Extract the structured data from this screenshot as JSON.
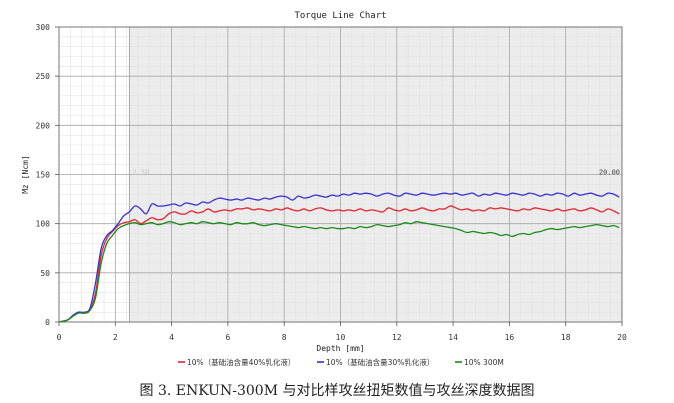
{
  "chart_data": {
    "type": "line",
    "title": "Torque Line Chart",
    "xlabel": "Depth [mm]",
    "ylabel": "Mz [Ncm]",
    "xlim": [
      0,
      20
    ],
    "ylim": [
      0,
      300
    ],
    "x_ticks": [
      "0",
      "2",
      "4",
      "6",
      "8",
      "10",
      "12",
      "14",
      "16",
      "18",
      "20"
    ],
    "y_ticks": [
      "0",
      "50",
      "100",
      "150",
      "200",
      "250",
      "300"
    ],
    "grid": true,
    "shaded_region": {
      "x_start": 2.5,
      "x_end": 20,
      "start_label": "2.50",
      "end_label": "20.00"
    },
    "legend_position": "bottom",
    "series": [
      {
        "name": "10%（基础油含量40%乳化液）",
        "color": "#e8232f",
        "x": [
          0,
          0.3,
          0.5,
          0.7,
          0.9,
          1.1,
          1.3,
          1.5,
          1.7,
          1.9,
          2.1,
          2.3,
          2.5,
          2.7,
          2.9,
          3.1,
          3.3,
          3.5,
          3.7,
          3.9,
          4.1,
          4.3,
          4.5,
          4.7,
          4.9,
          5.1,
          5.3,
          5.5,
          5.7,
          5.9,
          6.1,
          6.3,
          6.5,
          6.7,
          6.9,
          7.1,
          7.3,
          7.5,
          7.7,
          7.9,
          8.1,
          8.3,
          8.5,
          8.7,
          8.9,
          9.1,
          9.3,
          9.5,
          9.7,
          9.9,
          10.1,
          10.3,
          10.5,
          10.7,
          10.9,
          11.1,
          11.3,
          11.5,
          11.7,
          11.9,
          12.1,
          12.3,
          12.5,
          12.7,
          12.9,
          13.1,
          13.3,
          13.5,
          13.7,
          13.9,
          14.1,
          14.3,
          14.5,
          14.7,
          14.9,
          15.1,
          15.3,
          15.5,
          15.7,
          15.9,
          16.1,
          16.3,
          16.5,
          16.7,
          16.9,
          17.1,
          17.3,
          17.5,
          17.7,
          17.9,
          18.1,
          18.3,
          18.5,
          18.7,
          18.9,
          19.1,
          19.3,
          19.5,
          19.7,
          19.9
        ],
        "values": [
          0,
          2,
          6,
          10,
          9,
          12,
          30,
          68,
          85,
          92,
          98,
          101,
          102,
          104,
          100,
          103,
          106,
          104,
          105,
          110,
          112,
          110,
          110,
          113,
          111,
          112,
          115,
          112,
          113,
          114,
          113,
          115,
          115,
          116,
          114,
          115,
          114,
          113,
          115,
          114,
          116,
          114,
          113,
          115,
          113,
          115,
          116,
          114,
          113,
          114,
          113,
          114,
          113,
          115,
          113,
          114,
          113,
          112,
          116,
          114,
          113,
          115,
          113,
          114,
          116,
          114,
          113,
          115,
          115,
          118,
          116,
          114,
          115,
          113,
          114,
          113,
          116,
          115,
          116,
          115,
          114,
          113,
          115,
          114,
          116,
          115,
          114,
          113,
          115,
          113,
          114,
          115,
          113,
          114,
          116,
          114,
          112,
          115,
          113,
          110
        ]
      },
      {
        "name": "10%（基础油含量30%乳化液）",
        "color": "#3a2fd6",
        "x": [
          0,
          0.3,
          0.5,
          0.7,
          0.9,
          1.1,
          1.3,
          1.5,
          1.7,
          1.9,
          2.1,
          2.3,
          2.5,
          2.7,
          2.9,
          3.1,
          3.3,
          3.5,
          3.7,
          3.9,
          4.1,
          4.3,
          4.5,
          4.7,
          4.9,
          5.1,
          5.3,
          5.5,
          5.7,
          5.9,
          6.1,
          6.3,
          6.5,
          6.7,
          6.9,
          7.1,
          7.3,
          7.5,
          7.7,
          7.9,
          8.1,
          8.3,
          8.5,
          8.7,
          8.9,
          9.1,
          9.3,
          9.5,
          9.7,
          9.9,
          10.1,
          10.3,
          10.5,
          10.7,
          10.9,
          11.1,
          11.3,
          11.5,
          11.7,
          11.9,
          12.1,
          12.3,
          12.5,
          12.7,
          12.9,
          13.1,
          13.3,
          13.5,
          13.7,
          13.9,
          14.1,
          14.3,
          14.5,
          14.7,
          14.9,
          15.1,
          15.3,
          15.5,
          15.7,
          15.9,
          16.1,
          16.3,
          16.5,
          16.7,
          16.9,
          17.1,
          17.3,
          17.5,
          17.7,
          17.9,
          18.1,
          18.3,
          18.5,
          18.7,
          18.9,
          19.1,
          19.3,
          19.5,
          19.7,
          19.9
        ],
        "values": [
          0,
          2,
          7,
          10,
          10,
          14,
          40,
          75,
          88,
          93,
          100,
          108,
          112,
          118,
          115,
          110,
          120,
          118,
          118,
          119,
          120,
          118,
          121,
          120,
          119,
          122,
          121,
          124,
          126,
          125,
          124,
          125,
          124,
          126,
          125,
          124,
          126,
          125,
          127,
          128,
          127,
          124,
          128,
          126,
          127,
          129,
          128,
          127,
          129,
          128,
          130,
          129,
          131,
          130,
          131,
          130,
          128,
          130,
          131,
          129,
          128,
          131,
          130,
          129,
          131,
          130,
          129,
          130,
          131,
          130,
          131,
          129,
          130,
          131,
          128,
          130,
          129,
          131,
          130,
          129,
          131,
          130,
          129,
          131,
          130,
          128,
          130,
          129,
          131,
          130,
          128,
          131,
          129,
          130,
          131,
          129,
          128,
          131,
          130,
          127
        ]
      },
      {
        "name": "10% 300M",
        "color": "#1a8a1a",
        "x": [
          0,
          0.3,
          0.5,
          0.7,
          0.9,
          1.1,
          1.3,
          1.5,
          1.7,
          1.9,
          2.1,
          2.3,
          2.5,
          2.7,
          2.9,
          3.1,
          3.3,
          3.5,
          3.7,
          3.9,
          4.1,
          4.3,
          4.5,
          4.7,
          4.9,
          5.1,
          5.3,
          5.5,
          5.7,
          5.9,
          6.1,
          6.3,
          6.5,
          6.7,
          6.9,
          7.1,
          7.3,
          7.5,
          7.7,
          7.9,
          8.1,
          8.3,
          8.5,
          8.7,
          8.9,
          9.1,
          9.3,
          9.5,
          9.7,
          9.9,
          10.1,
          10.3,
          10.5,
          10.7,
          10.9,
          11.1,
          11.3,
          11.5,
          11.7,
          11.9,
          12.1,
          12.3,
          12.5,
          12.7,
          12.9,
          13.1,
          13.3,
          13.5,
          13.7,
          13.9,
          14.1,
          14.3,
          14.5,
          14.7,
          14.9,
          15.1,
          15.3,
          15.5,
          15.7,
          15.9,
          16.1,
          16.3,
          16.5,
          16.7,
          16.9,
          17.1,
          17.3,
          17.5,
          17.7,
          17.9,
          18.1,
          18.3,
          18.5,
          18.7,
          18.9,
          19.1,
          19.3,
          19.5,
          19.7,
          19.9
        ],
        "values": [
          0,
          2,
          6,
          9,
          9,
          12,
          25,
          60,
          80,
          88,
          95,
          98,
          100,
          101,
          99,
          100,
          101,
          99,
          100,
          102,
          101,
          99,
          100,
          101,
          100,
          102,
          101,
          100,
          101,
          100,
          99,
          101,
          100,
          100,
          101,
          99,
          98,
          99,
          100,
          99,
          98,
          97,
          96,
          97,
          96,
          95,
          96,
          95,
          96,
          95,
          95,
          96,
          95,
          97,
          96,
          97,
          99,
          98,
          97,
          98,
          99,
          101,
          100,
          102,
          101,
          100,
          99,
          98,
          97,
          96,
          95,
          93,
          91,
          92,
          91,
          90,
          91,
          90,
          88,
          89,
          87,
          89,
          90,
          89,
          91,
          92,
          94,
          95,
          94,
          95,
          96,
          97,
          96,
          97,
          98,
          99,
          98,
          97,
          98,
          96
        ]
      }
    ]
  },
  "caption": "图 3. ENKUN-300M 与对比样攻丝扭矩数值与攻丝深度数据图"
}
